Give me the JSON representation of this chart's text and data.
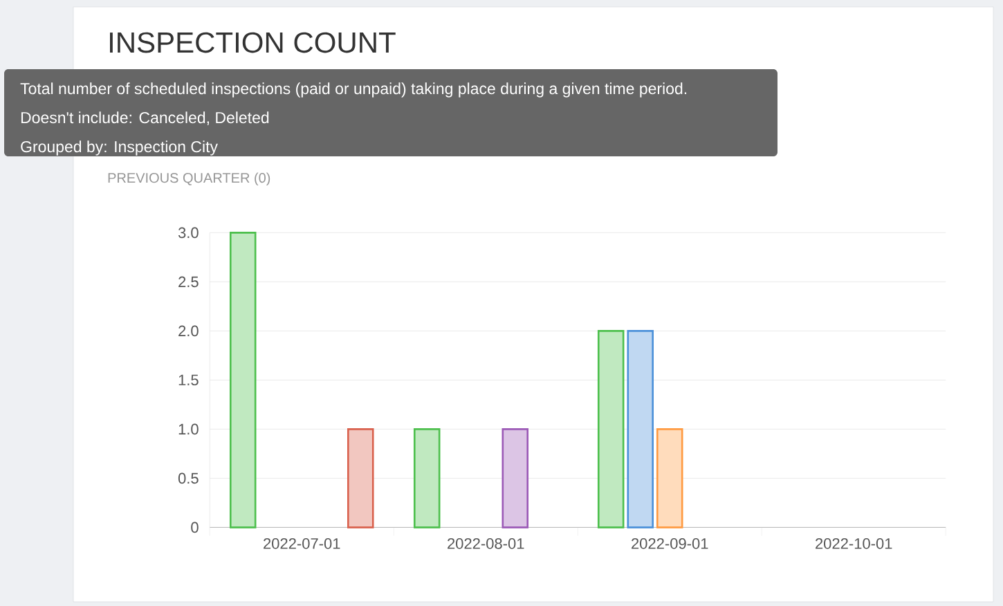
{
  "chart_data": {
    "type": "bar",
    "title": "INSPECTION COUNT",
    "subtitle": "PREVIOUS QUARTER (0)",
    "annotations": [
      "Total number of scheduled inspections (paid or unpaid) taking place during a given time period.",
      "Doesn't include: Canceled, Deleted",
      "Grouped by: Inspection City"
    ],
    "categories": [
      "2022-07-01",
      "2022-08-01",
      "2022-09-01",
      "2022-10-01"
    ],
    "series": [
      {
        "color": "#4cbf4c",
        "values": [
          3,
          1,
          2,
          null
        ]
      },
      {
        "color": "#4a90d9",
        "values": [
          null,
          null,
          2,
          null
        ]
      },
      {
        "color": "#ff9a40",
        "values": [
          null,
          null,
          1,
          null
        ]
      },
      {
        "color": "#9b59b6",
        "values": [
          null,
          1,
          null,
          null
        ]
      },
      {
        "color": "#d9604c",
        "values": [
          1,
          null,
          null,
          null
        ]
      }
    ],
    "ylim": [
      0,
      3
    ],
    "yticks": [
      0,
      0.5,
      {
        "value": 1,
        "label": "1.0"
      },
      1.5,
      {
        "value": 2,
        "label": "2.0"
      },
      2.5,
      {
        "value": 3,
        "label": "3.0"
      }
    ],
    "grid": "y"
  }
}
